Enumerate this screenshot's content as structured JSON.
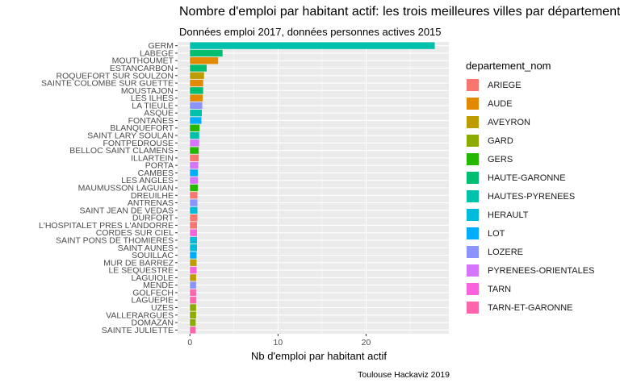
{
  "chart_data": {
    "type": "bar",
    "orientation": "horizontal",
    "title": "Nombre d'emploi par habitant actif: les trois meilleures villes par département",
    "subtitle": "Données emploi 2017, données personnes actives 2015",
    "xlabel": "Nb d'emploi par habitant actif",
    "ylabel": "",
    "caption": "Toulouse Hackaviz 2019",
    "xlim": [
      -1.4,
      29.4
    ],
    "xticks": [
      0,
      10,
      20
    ],
    "grid": true,
    "legend_position": "right",
    "legend_title": "departement_nom",
    "legend": [
      {
        "name": "ARIEGE",
        "color": "#F8766D"
      },
      {
        "name": "AUDE",
        "color": "#E18A00"
      },
      {
        "name": "AVEYRON",
        "color": "#BE9C00"
      },
      {
        "name": "GARD",
        "color": "#8CAB00"
      },
      {
        "name": "GERS",
        "color": "#24B700"
      },
      {
        "name": "HAUTE-GARONNE",
        "color": "#00BE70"
      },
      {
        "name": "HAUTES-PYRENEES",
        "color": "#00C1AB"
      },
      {
        "name": "HERAULT",
        "color": "#00BBDA"
      },
      {
        "name": "LOT",
        "color": "#00ACFC"
      },
      {
        "name": "LOZERE",
        "color": "#8B93FF"
      },
      {
        "name": "PYRENEES-ORIENTALES",
        "color": "#D575FE"
      },
      {
        "name": "TARN",
        "color": "#F962DD"
      },
      {
        "name": "TARN-ET-GARONNE",
        "color": "#FF65AC"
      }
    ],
    "bars": [
      {
        "category": "GERM",
        "value": 27.8,
        "departement": "HAUTES-PYRENEES"
      },
      {
        "category": "LABEGE",
        "value": 3.7,
        "departement": "HAUTE-GARONNE"
      },
      {
        "category": "MOUTHOUMET",
        "value": 3.2,
        "departement": "AUDE"
      },
      {
        "category": "ESTANCARBON",
        "value": 1.9,
        "departement": "HAUTE-GARONNE"
      },
      {
        "category": "ROQUEFORT SUR SOULZON",
        "value": 1.6,
        "departement": "AVEYRON"
      },
      {
        "category": "SAINTE COLOMBE SUR GUETTE",
        "value": 1.5,
        "departement": "AUDE"
      },
      {
        "category": "MOUSTAJON",
        "value": 1.5,
        "departement": "HAUTE-GARONNE"
      },
      {
        "category": "LES ILHES",
        "value": 1.45,
        "departement": "AUDE"
      },
      {
        "category": "LA TIEULE",
        "value": 1.4,
        "departement": "LOZERE"
      },
      {
        "category": "ASQUE",
        "value": 1.35,
        "departement": "HAUTES-PYRENEES"
      },
      {
        "category": "FONTANES",
        "value": 1.3,
        "departement": "LOT"
      },
      {
        "category": "BLANQUEFORT",
        "value": 1.1,
        "departement": "GERS"
      },
      {
        "category": "SAINT LARY SOULAN",
        "value": 1.05,
        "departement": "HAUTES-PYRENEES"
      },
      {
        "category": "FONTPEDROUSE",
        "value": 1.05,
        "departement": "PYRENEES-ORIENTALES"
      },
      {
        "category": "BELLOC SAINT CLAMENS",
        "value": 1.0,
        "departement": "GERS"
      },
      {
        "category": "ILLARTEIN",
        "value": 1.0,
        "departement": "ARIEGE"
      },
      {
        "category": "PORTA",
        "value": 0.95,
        "departement": "PYRENEES-ORIENTALES"
      },
      {
        "category": "CAMBES",
        "value": 0.9,
        "departement": "LOT"
      },
      {
        "category": "LES ANGLES",
        "value": 0.9,
        "departement": "PYRENEES-ORIENTALES"
      },
      {
        "category": "MAUMUSSON LAGUIAN",
        "value": 0.9,
        "departement": "GERS"
      },
      {
        "category": "DREUILHE",
        "value": 0.85,
        "departement": "ARIEGE"
      },
      {
        "category": "ANTRENAS",
        "value": 0.85,
        "departement": "LOZERE"
      },
      {
        "category": "SAINT JEAN DE VEDAS",
        "value": 0.85,
        "departement": "HERAULT"
      },
      {
        "category": "DURFORT",
        "value": 0.85,
        "departement": "ARIEGE"
      },
      {
        "category": "L'HOSPITALET PRES L'ANDORRE",
        "value": 0.8,
        "departement": "ARIEGE"
      },
      {
        "category": "CORDES SUR CIEL",
        "value": 0.8,
        "departement": "TARN"
      },
      {
        "category": "SAINT PONS DE THOMIERES",
        "value": 0.8,
        "departement": "HERAULT"
      },
      {
        "category": "SAINT AUNES",
        "value": 0.8,
        "departement": "HERAULT"
      },
      {
        "category": "SOUILLAC",
        "value": 0.75,
        "departement": "LOT"
      },
      {
        "category": "MUR DE BARREZ",
        "value": 0.75,
        "departement": "AVEYRON"
      },
      {
        "category": "LE SEQUESTRE",
        "value": 0.75,
        "departement": "TARN"
      },
      {
        "category": "LAGUIOLE",
        "value": 0.7,
        "departement": "AVEYRON"
      },
      {
        "category": "MENDE",
        "value": 0.7,
        "departement": "LOZERE"
      },
      {
        "category": "GOLFECH",
        "value": 0.7,
        "departement": "TARN-ET-GARONNE"
      },
      {
        "category": "LAGUEPIE",
        "value": 0.7,
        "departement": "TARN-ET-GARONNE"
      },
      {
        "category": "UZES",
        "value": 0.7,
        "departement": "GARD"
      },
      {
        "category": "VALLERARGUES",
        "value": 0.7,
        "departement": "GARD"
      },
      {
        "category": "DOMAZAN",
        "value": 0.65,
        "departement": "GARD"
      },
      {
        "category": "SAINTE JULIETTE",
        "value": 0.65,
        "departement": "TARN-ET-GARONNE"
      }
    ]
  }
}
